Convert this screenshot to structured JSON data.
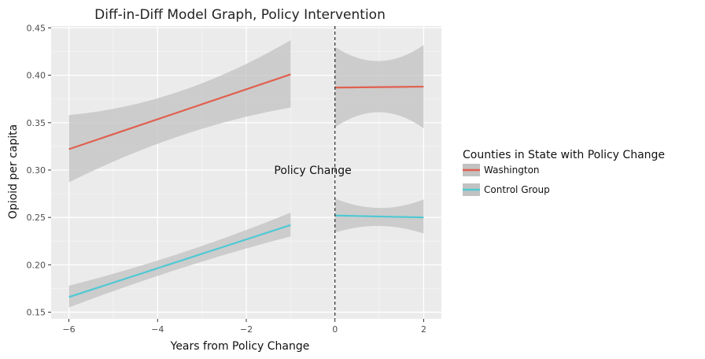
{
  "chart_data": {
    "type": "line",
    "title": "Diff-in-Diff Model Graph, Policy Intervention",
    "xlabel": "Years from Policy Change",
    "ylabel": "Opioid per capita",
    "xlim": [
      -6.4,
      2.4
    ],
    "ylim": [
      0.143,
      0.452
    ],
    "x_ticks": [
      -6,
      -4,
      -2,
      0,
      2
    ],
    "x_tick_labels": [
      "−6",
      "−4",
      "−2",
      "0",
      "2"
    ],
    "y_ticks": [
      0.15,
      0.2,
      0.25,
      0.3,
      0.35,
      0.4,
      0.45
    ],
    "y_tick_labels": [
      "0.15",
      "0.20",
      "0.25",
      "0.30",
      "0.35",
      "0.40",
      "0.45"
    ],
    "grid": true,
    "vline": {
      "x": 0,
      "style": "dashed"
    },
    "annotation": {
      "text": "Policy Change",
      "x": -0.5,
      "y": 0.3
    },
    "legend": {
      "title": "Counties in State with Policy Change",
      "position": "right"
    },
    "series": [
      {
        "name": "Washington",
        "color": "#e0604f",
        "segments": [
          {
            "x": [
              -6,
              -1
            ],
            "y": [
              0.322,
              0.401
            ],
            "ci_lower": [
              0.287,
              0.366
            ],
            "ci_mid_lower": 0.336,
            "ci_upper": [
              0.358,
              0.437
            ],
            "ci_mid_upper": 0.383
          },
          {
            "x": [
              0,
              2
            ],
            "y": [
              0.387,
              0.388
            ],
            "ci_lower": [
              0.345,
              0.344
            ],
            "ci_mid_lower": 0.361,
            "ci_upper": [
              0.43,
              0.432
            ],
            "ci_mid_upper": 0.415
          }
        ]
      },
      {
        "name": "Control Group",
        "color": "#4fc9d4",
        "segments": [
          {
            "x": [
              -6,
              -1
            ],
            "y": [
              0.166,
              0.242
            ],
            "ci_lower": [
              0.155,
              0.23
            ],
            "ci_mid_lower": 0.196,
            "ci_upper": [
              0.178,
              0.255
            ],
            "ci_mid_upper": 0.212
          },
          {
            "x": [
              0,
              2
            ],
            "y": [
              0.252,
              0.25
            ],
            "ci_lower": [
              0.234,
              0.233
            ],
            "ci_mid_lower": 0.241,
            "ci_upper": [
              0.27,
              0.269
            ],
            "ci_mid_upper": 0.26
          }
        ]
      }
    ]
  }
}
